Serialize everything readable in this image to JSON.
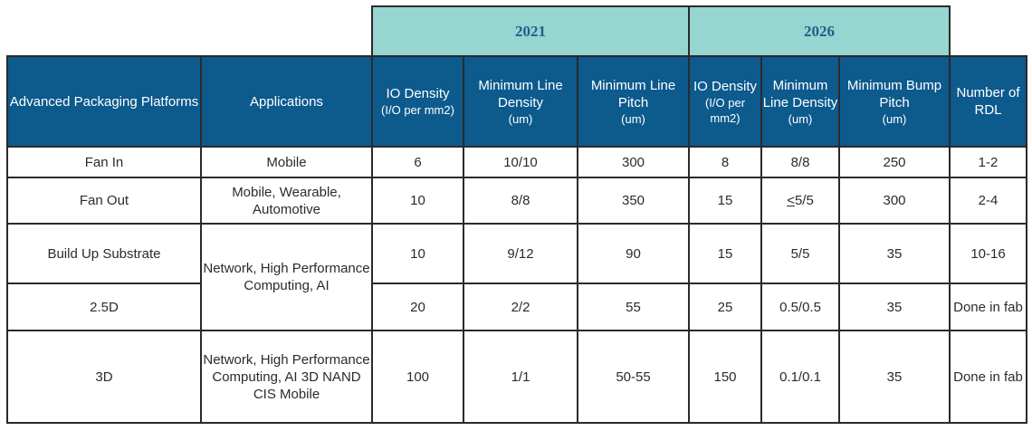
{
  "years": {
    "first": "2021",
    "second": "2026"
  },
  "headers": {
    "platforms": "Advanced Packaging Platforms",
    "applications": "Applications",
    "io_density_2021": "IO Density",
    "io_density_2021_unit": "(I/O per mm2)",
    "min_line_density_2021": "Minimum Line Density",
    "min_line_density_2021_unit": "(um)",
    "min_line_pitch_2021": "Minimum Line Pitch",
    "min_line_pitch_2021_unit": "(um)",
    "io_density_2026": "IO Density",
    "io_density_2026_unit": "(I/O per mm2)",
    "min_line_density_2026": "Minimum Line Density",
    "min_line_density_2026_unit": "(um)",
    "min_bump_pitch_2026": "Minimum Bump Pitch",
    "min_bump_pitch_2026_unit": "(um)",
    "num_rdl": "Number of RDL"
  },
  "rows": [
    {
      "platform": "Fan In",
      "app": "Mobile",
      "io21": "6",
      "mld21": "10/10",
      "mlp21": "300",
      "io26": "8",
      "mld26_prefix": "",
      "mld26": "8/8",
      "mbp26": "250",
      "rdl": "1-2"
    },
    {
      "platform": "Fan Out",
      "app": "Mobile, Wearable, Automotive",
      "io21": "10",
      "mld21": "8/8",
      "mlp21": "350",
      "io26": "15",
      "mld26_prefix": "<",
      "mld26": "5/5",
      "mbp26": "300",
      "rdl": "2-4"
    },
    {
      "platform": "Build Up Substrate",
      "app": "Network, High Performance Computing, AI",
      "io21": "10",
      "mld21": "9/12",
      "mlp21": "90",
      "io26": "15",
      "mld26_prefix": "",
      "mld26": "5/5",
      "mbp26": "35",
      "rdl": "10-16"
    },
    {
      "platform": "2.5D",
      "app": "",
      "io21": "20",
      "mld21": "2/2",
      "mlp21": "55",
      "io26": "25",
      "mld26_prefix": "",
      "mld26": "0.5/0.5",
      "mbp26": "35",
      "rdl": "Done in fab"
    },
    {
      "platform": "3D",
      "app": "Network, High Performance Computing, AI 3D NAND CIS Mobile",
      "io21": "100",
      "mld21": "1/1",
      "mlp21": "50-55",
      "io26": "150",
      "mld26_prefix": "",
      "mld26": "0.1/0.1",
      "mbp26": "35",
      "rdl": "Done in fab"
    }
  ]
}
